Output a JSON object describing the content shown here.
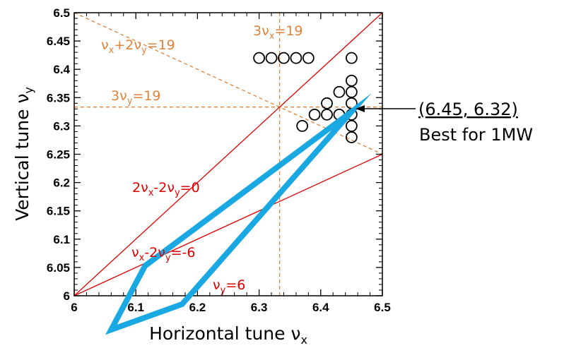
{
  "chart_data": {
    "type": "scatter",
    "xlabel": "Horizontal tune νx",
    "ylabel": "Vertical tune νy",
    "xlim": [
      6,
      6.5
    ],
    "ylim": [
      6,
      6.5
    ],
    "x_ticks": [
      "6",
      "6.1",
      "6.2",
      "6.3",
      "6.4",
      "6.5"
    ],
    "y_ticks": [
      "6",
      "6.05",
      "6.1",
      "6.15",
      "6.2",
      "6.25",
      "6.3",
      "6.35",
      "6.4",
      "6.45",
      "6.5"
    ],
    "scatter_points": [
      {
        "x": 6.3,
        "y": 6.42
      },
      {
        "x": 6.32,
        "y": 6.42
      },
      {
        "x": 6.34,
        "y": 6.42
      },
      {
        "x": 6.36,
        "y": 6.42
      },
      {
        "x": 6.38,
        "y": 6.42
      },
      {
        "x": 6.45,
        "y": 6.42
      },
      {
        "x": 6.45,
        "y": 6.38
      },
      {
        "x": 6.45,
        "y": 6.36
      },
      {
        "x": 6.43,
        "y": 6.36
      },
      {
        "x": 6.45,
        "y": 6.34
      },
      {
        "x": 6.41,
        "y": 6.34
      },
      {
        "x": 6.45,
        "y": 6.32
      },
      {
        "x": 6.43,
        "y": 6.32
      },
      {
        "x": 6.41,
        "y": 6.32
      },
      {
        "x": 6.39,
        "y": 6.32
      },
      {
        "x": 6.45,
        "y": 6.3
      },
      {
        "x": 6.37,
        "y": 6.3
      },
      {
        "x": 6.45,
        "y": 6.28
      }
    ],
    "resonance_lines": [
      {
        "label": "νx+2νy=19",
        "color": "#e0833a",
        "dashed": true,
        "points": [
          [
            6.0,
            6.5
          ],
          [
            6.5,
            6.25
          ]
        ]
      },
      {
        "label": "3νx=19",
        "color": "#e0833a",
        "dashed": true,
        "points": [
          [
            6.3333,
            6.0
          ],
          [
            6.3333,
            6.5
          ]
        ]
      },
      {
        "label": "3νy=19",
        "color": "#e0833a",
        "dashed": true,
        "points": [
          [
            6.0,
            6.3333
          ],
          [
            6.5,
            6.3333
          ]
        ]
      },
      {
        "label": "2νx-2νy=0",
        "color": "#e00000",
        "dashed": false,
        "points": [
          [
            6.0,
            6.0
          ],
          [
            6.5,
            6.5
          ]
        ]
      },
      {
        "label": "νx-2νy=-6",
        "color": "#e00000",
        "dashed": false,
        "points": [
          [
            6.0,
            6.0
          ],
          [
            6.5,
            6.25
          ]
        ]
      },
      {
        "label": "νy=6",
        "color": "#e00000",
        "dashed": false,
        "points": []
      }
    ],
    "tune_path": {
      "color": "#1aa8e3",
      "points": [
        [
          6.45,
          6.325
        ],
        [
          6.115,
          6.053
        ],
        [
          6.06,
          5.94
        ],
        [
          6.175,
          5.985
        ],
        [
          6.45,
          6.325
        ]
      ]
    },
    "annotation": {
      "line1": "(6.45, 6.32)",
      "line2": "Best for 1MW",
      "target": [
        6.45,
        6.332
      ]
    }
  }
}
